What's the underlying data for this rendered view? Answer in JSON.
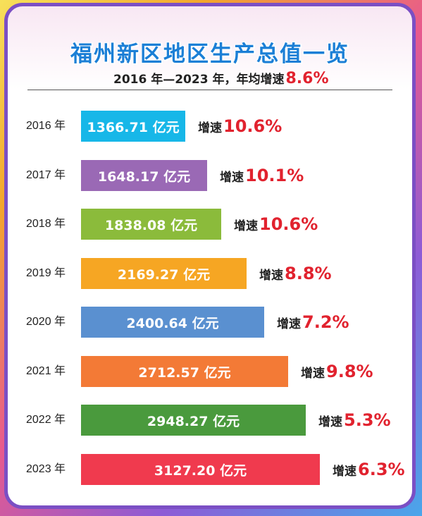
{
  "title": "福州新区地区生产总值一览",
  "subtitle": {
    "text": "2016 年—2023 年，年均增速",
    "value": "8.6%"
  },
  "colors": {
    "title": "#1b7fd6",
    "highlight": "#e1222e",
    "frame": "#7b4fc4"
  },
  "chart_data": {
    "type": "bar",
    "orientation": "horizontal",
    "unit": "亿元",
    "xlim": [
      0,
      3600
    ],
    "categories": [
      "2016 年",
      "2017 年",
      "2018 年",
      "2019 年",
      "2020 年",
      "2021 年",
      "2022 年",
      "2023 年"
    ],
    "values": [
      1366.71,
      1648.17,
      1838.08,
      2169.27,
      2400.64,
      2712.57,
      2948.27,
      3127.2
    ],
    "value_labels": [
      "1366.71 亿元",
      "1648.17 亿元",
      "1838.08 亿元",
      "2169.27 亿元",
      "2400.64 亿元",
      "2712.57 亿元",
      "2948.27 亿元",
      "3127.20 亿元"
    ],
    "growth_label": "增速",
    "growth": [
      "10.6%",
      "10.1%",
      "10.6%",
      "8.8%",
      "7.2%",
      "9.8%",
      "5.3%",
      "6.3%"
    ],
    "bar_colors": [
      "#17b7e8",
      "#9a69b5",
      "#8bbb3b",
      "#f6a623",
      "#5a90d0",
      "#f37a36",
      "#4a9a3d",
      "#f03a4e"
    ]
  }
}
